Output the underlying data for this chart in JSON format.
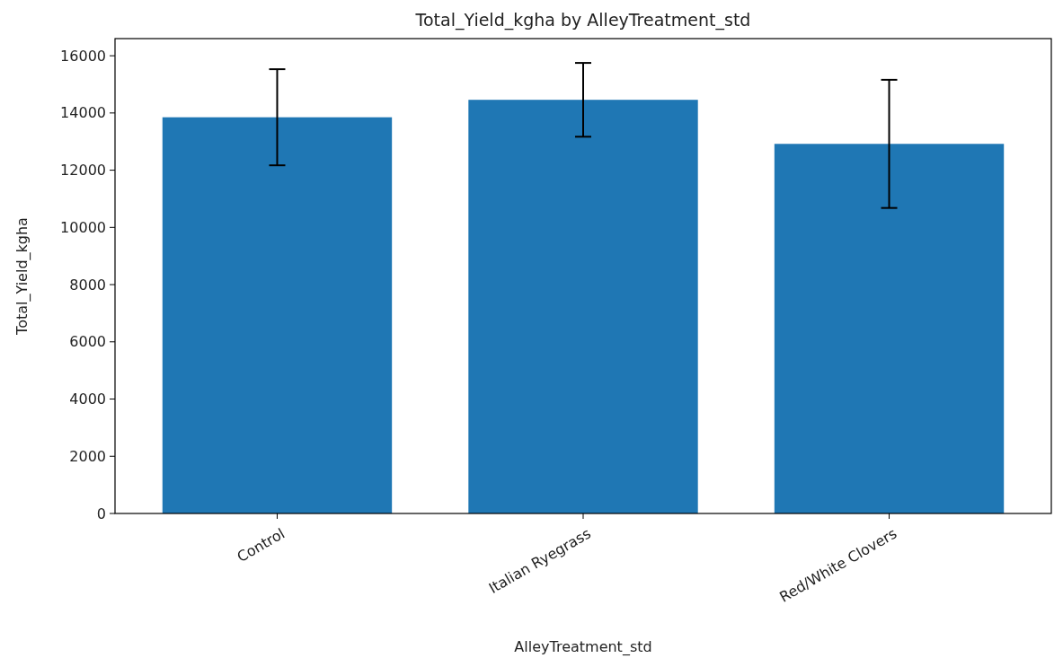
{
  "chart_data": {
    "type": "bar",
    "title": "Total_Yield_kgha by AlleyTreatment_std",
    "xlabel": "AlleyTreatment_std",
    "ylabel": "Total_Yield_kgha",
    "categories": [
      "Control",
      "Italian Ryegrass",
      "Red/White Clovers"
    ],
    "values": [
      13850,
      14460,
      12920
    ],
    "errors": [
      1680,
      1290,
      2240
    ],
    "color": "#1f77b4",
    "ylim": [
      0,
      16600
    ],
    "yticks": [
      0,
      2000,
      4000,
      6000,
      8000,
      10000,
      12000,
      14000,
      16000
    ]
  }
}
